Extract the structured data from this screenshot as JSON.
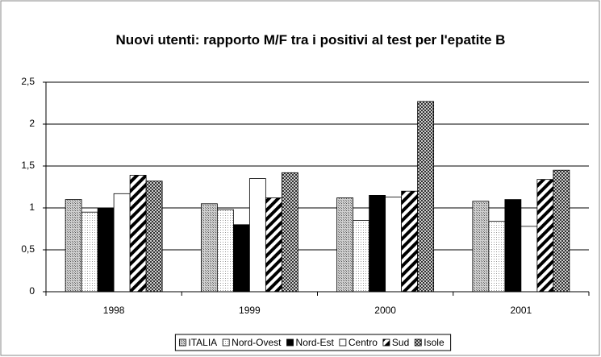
{
  "chart_data": {
    "type": "bar",
    "title": "Nuovi utenti: rapporto M/F tra i positivi al test per l'epatite B",
    "categories": [
      "1998",
      "1999",
      "2000",
      "2001"
    ],
    "series": [
      {
        "name": "ITALIA",
        "color": "#a0a0a0",
        "pattern": "dots",
        "values": [
          1.1,
          1.05,
          1.12,
          1.08
        ]
      },
      {
        "name": "Nord-Ovest",
        "color": "#e0e0e0",
        "pattern": "dots",
        "values": [
          0.95,
          0.98,
          0.85,
          0.84
        ]
      },
      {
        "name": "Nord-Est",
        "color": "#000000",
        "pattern": "none",
        "values": [
          1.0,
          0.8,
          1.15,
          1.1
        ]
      },
      {
        "name": "Centro",
        "color": "#ffffff",
        "pattern": "none",
        "values": [
          1.17,
          1.35,
          1.13,
          0.78
        ]
      },
      {
        "name": "Sud",
        "color": "#000000",
        "pattern": "stripes",
        "values": [
          1.39,
          1.12,
          1.2,
          1.34
        ]
      },
      {
        "name": "Isole",
        "color": "#606060",
        "pattern": "checker",
        "values": [
          1.32,
          1.42,
          2.27,
          1.45
        ]
      }
    ],
    "ylim": [
      0,
      2.5
    ],
    "yticks": [
      0,
      {
        "value": 0.5,
        "label": "0,5"
      },
      1,
      {
        "value": 1.5,
        "label": "1,5"
      },
      2,
      {
        "value": 2.5,
        "label": "2,5"
      }
    ],
    "grid": true
  }
}
